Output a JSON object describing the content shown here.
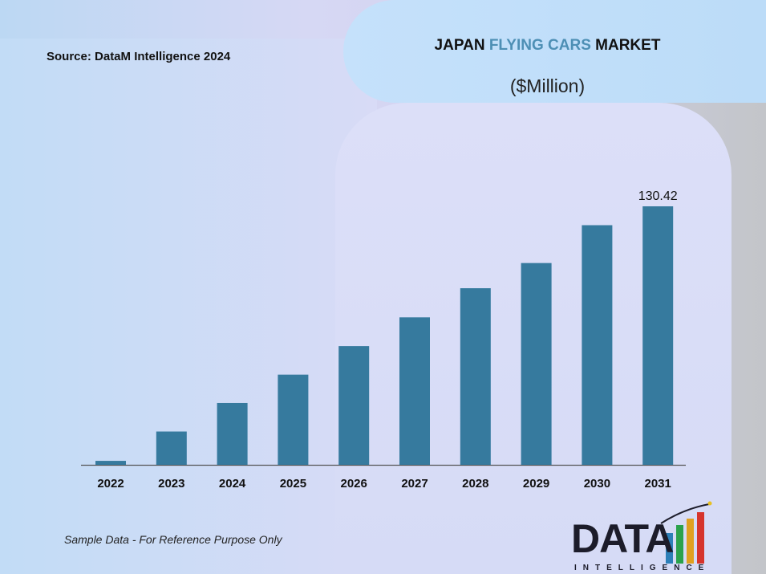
{
  "header": {
    "source": "Source: DataM Intelligence 2024",
    "title_part1": "JAPAN ",
    "title_accent": "FLYING CARS",
    "title_part2": " MARKET",
    "subtitle": "($Million)"
  },
  "footer": {
    "note": "Sample Data - For Reference Purpose Only",
    "logo_main": "DATA",
    "logo_sub": "INTELLIGENCE"
  },
  "colors": {
    "bar": "#367a9e",
    "accent": "#4d8fb5",
    "axis": "#555555"
  },
  "chart_data": {
    "type": "bar",
    "title": "JAPAN FLYING CARS MARKET",
    "subtitle": "($Million)",
    "categories": [
      "2022",
      "2023",
      "2024",
      "2025",
      "2026",
      "2027",
      "2028",
      "2029",
      "2030",
      "2031"
    ],
    "values": [
      2.0,
      16.8,
      31.2,
      45.5,
      59.9,
      74.4,
      89.1,
      101.8,
      120.9,
      130.42
    ],
    "data_labels": [
      "",
      "",
      "",
      "",
      "",
      "",
      "",
      "",
      "",
      "130.42"
    ],
    "ylim": [
      0,
      130.42
    ],
    "grid": false,
    "legend": "none"
  }
}
